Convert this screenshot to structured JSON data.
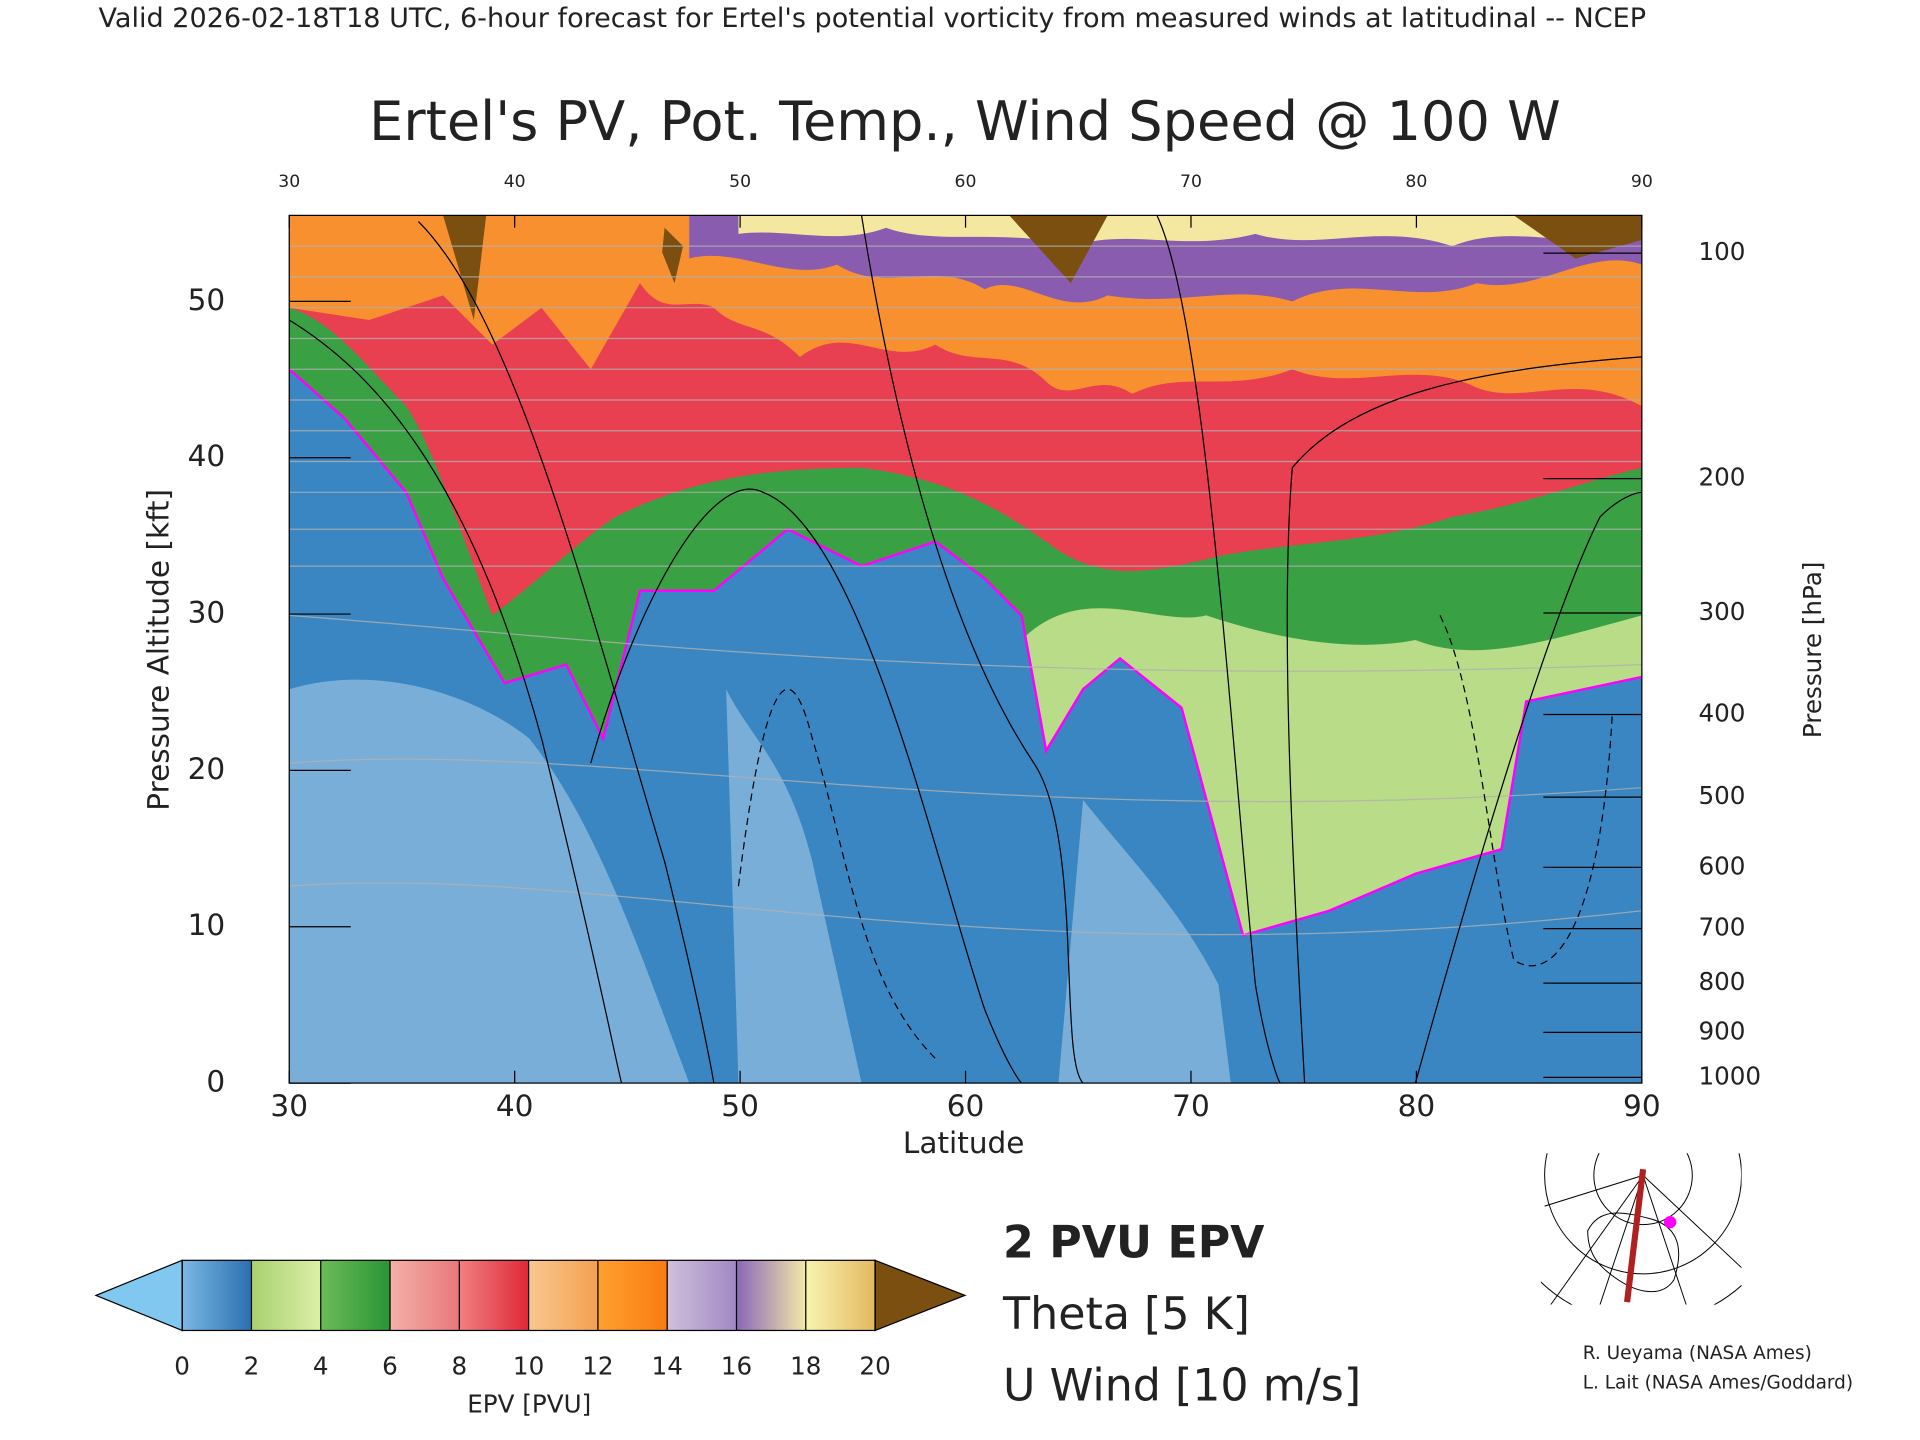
{
  "header": "Valid 2026-02-18T18 UTC, 6-hour forecast for Ertel's potential vorticity from measured winds at latitudinal -- NCEP",
  "chart_data": {
    "type": "contour",
    "title": "Ertel's PV, Pot. Temp., Wind Speed @ 100 W",
    "x_label": "Latitude",
    "y_label": "Pressure Altitude [kft]",
    "y2_label": "Pressure [hPa]",
    "xlim": [
      30,
      90
    ],
    "xticks": [
      30,
      40,
      50,
      60,
      70,
      80,
      90
    ],
    "ylim": [
      0,
      55.5
    ],
    "yticks": [
      0,
      10,
      20,
      30,
      40,
      50
    ],
    "y2scale": "standard-atmosphere",
    "y2ticks": [
      100,
      200,
      300,
      400,
      500,
      600,
      700,
      800,
      900,
      1000
    ],
    "colorbar": {
      "label": "EPV [PVU]",
      "ticks": [
        0,
        2,
        4,
        6,
        8,
        10,
        12,
        14,
        16,
        18,
        20
      ],
      "under": "#80c8f0",
      "over": "#7b4f10",
      "colors": [
        [
          "#7ab8e4",
          "#2a70b0"
        ],
        [
          "#a8d070",
          "#dcf0a8"
        ],
        [
          "#6cbc58",
          "#2a9434"
        ],
        [
          "#f4b0a8",
          "#e87878"
        ],
        [
          "#f08080",
          "#e02838"
        ],
        [
          "#f8c890",
          "#f4a050"
        ],
        [
          "#ffa030",
          "#f87c10"
        ],
        [
          "#d0c0dc",
          "#a088c4"
        ],
        [
          "#8a68b8",
          "#f4e8a8"
        ],
        [
          "#f8f4b0",
          "#e4b860"
        ]
      ]
    },
    "legend": [
      {
        "label": "2 PVU EPV",
        "color": "#ff00ff"
      },
      {
        "label": "Theta [5 K]",
        "color": "#b0b0b0"
      },
      {
        "label": "U Wind [10 m/s]",
        "color": "#000000"
      }
    ]
  },
  "credits": [
    "R. Ueyama (NASA Ames)",
    "L. Lait (NASA Ames/Goddard)"
  ]
}
